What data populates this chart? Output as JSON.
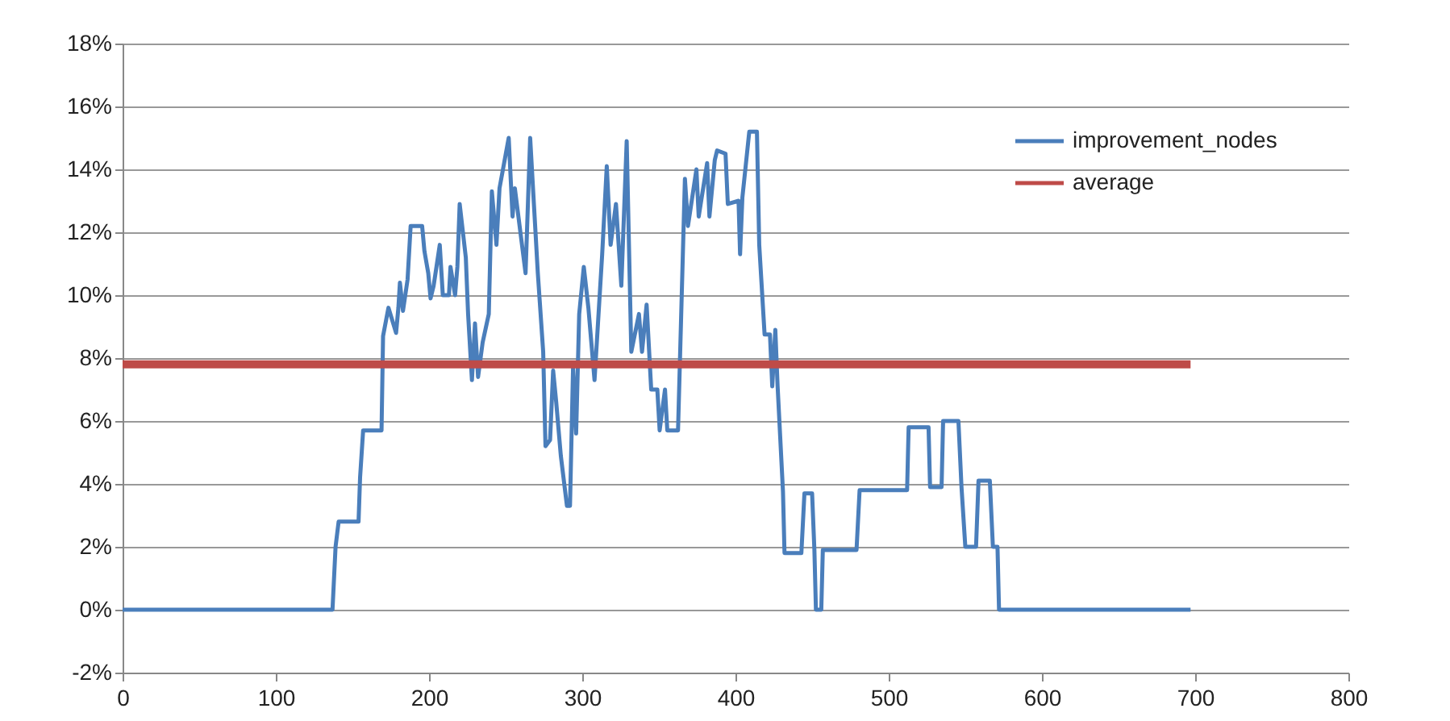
{
  "chart_data": {
    "type": "line",
    "xlim": [
      0,
      800
    ],
    "xticks": [
      0,
      100,
      200,
      300,
      400,
      500,
      600,
      700,
      800
    ],
    "ylim": [
      -2,
      18
    ],
    "yticks": [
      {
        "value": -2,
        "label": "-2%"
      },
      {
        "value": 0,
        "label": "0%"
      },
      {
        "value": 2,
        "label": "2%"
      },
      {
        "value": 4,
        "label": "4%"
      },
      {
        "value": 6,
        "label": "6%"
      },
      {
        "value": 8,
        "label": "8%"
      },
      {
        "value": 10,
        "label": "10%"
      },
      {
        "value": 12,
        "label": "12%"
      },
      {
        "value": 14,
        "label": "14%"
      },
      {
        "value": 16,
        "label": "16%"
      },
      {
        "value": 18,
        "label": "18%"
      }
    ],
    "grid": "y",
    "legend": "top right",
    "marker": "none",
    "line_style": "solid",
    "series": [
      {
        "name": "improvement_nodes",
        "color": "#4a7ebb",
        "x": [
          0,
          137,
          139,
          141,
          154,
          155,
          157,
          169,
          170,
          173.5,
          178.5,
          180,
          181,
          183,
          186,
          188,
          195.5,
          197,
          199.5,
          201,
          203,
          207,
          209,
          213,
          214,
          217,
          218.5,
          220,
          224,
          225.5,
          228,
          230,
          232,
          235,
          239,
          241,
          244,
          246,
          252,
          254.5,
          256,
          263,
          266,
          271,
          274.5,
          276,
          279,
          281,
          283,
          286,
          290,
          292,
          294,
          296,
          298,
          301,
          304,
          308,
          313,
          316,
          318.5,
          322,
          325.5,
          329,
          332,
          337,
          339,
          342,
          345,
          349,
          350.5,
          354,
          355.5,
          362.5,
          367,
          369,
          374.5,
          376,
          381.5,
          383,
          386.5,
          388,
          393.5,
          395,
          402,
          403,
          404.5,
          409,
          414,
          415.5,
          419,
          422.5,
          424,
          426,
          427.5,
          431,
          432,
          443,
          445,
          450,
          451.5,
          452.5,
          456,
          457,
          479,
          481,
          512,
          513,
          526,
          527,
          534.5,
          535.5,
          545.5,
          547.5,
          550,
          557,
          558.6,
          566,
          568,
          571,
          572,
          697
        ],
        "values": [
          0,
          0,
          2,
          2.8,
          2.8,
          4.2,
          5.7,
          5.7,
          8.7,
          9.6,
          8.8,
          9.6,
          10.4,
          9.5,
          10.5,
          12.2,
          12.2,
          11.4,
          10.7,
          9.9,
          10.3,
          11.6,
          10,
          10,
          10.9,
          10,
          10.9,
          12.9,
          11.2,
          9.4,
          7.3,
          9.1,
          7.4,
          8.5,
          9.4,
          13.3,
          11.6,
          13.4,
          15,
          12.5,
          13.4,
          10.7,
          15,
          10.7,
          8.2,
          5.2,
          5.4,
          7.6,
          6.6,
          4.9,
          3.3,
          3.3,
          7.7,
          5.6,
          9.4,
          10.9,
          9.6,
          7.3,
          11.3,
          14.1,
          11.6,
          12.9,
          10.3,
          14.9,
          8.2,
          9.4,
          8.2,
          9.7,
          7,
          7,
          5.7,
          7,
          5.7,
          5.7,
          13.7,
          12.2,
          14,
          12.5,
          14.2,
          12.5,
          14.3,
          14.6,
          14.5,
          12.9,
          13,
          11.3,
          13.1,
          15.2,
          15.2,
          11.6,
          8.75,
          8.75,
          7.1,
          8.9,
          7.1,
          3.75,
          1.8,
          1.8,
          3.7,
          3.7,
          1.9,
          0,
          0,
          1.9,
          1.9,
          3.8,
          3.8,
          5.8,
          5.8,
          3.9,
          3.9,
          6,
          6,
          3.9,
          2,
          2,
          4.1,
          4.1,
          2,
          2,
          0,
          0
        ]
      },
      {
        "name": "average",
        "color": "#be4b48",
        "x": [
          0,
          697
        ],
        "values": [
          7.8,
          7.8
        ]
      }
    ]
  }
}
